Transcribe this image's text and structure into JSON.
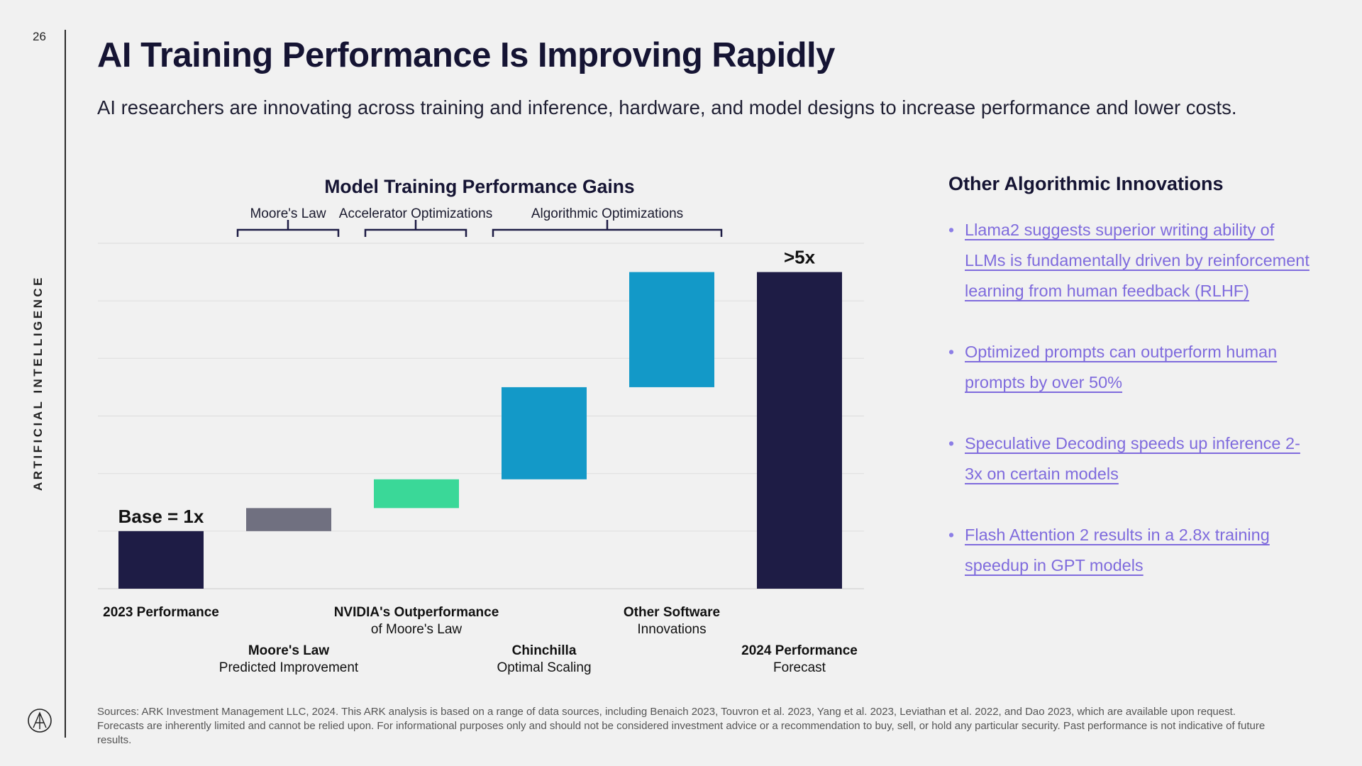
{
  "page": {
    "number": "26",
    "side_label": "ARTIFICIAL INTELLIGENCE",
    "title": "AI Training Performance Is Improving Rapidly",
    "subtitle": "AI researchers are innovating across training and inference, hardware, and model designs to increase performance and lower costs.",
    "sources": "Sources: ARK Investment Management LLC, 2024. This ARK analysis is based on a range of data sources, including Benaich 2023, Touvron et al. 2023, Yang et al. 2023, Leviathan et al. 2022, and Dao 2023, which are available upon request. Forecasts are inherently limited and cannot be relied upon. For informational purposes only and should not be considered investment advice or a recommendation to buy, sell, or hold any particular security. Past performance is not indicative of future results."
  },
  "right_panel": {
    "title": "Other Algorithmic Innovations",
    "bullets": [
      "Llama2 suggests superior writing ability of LLMs is fundamentally driven by reinforcement learning from human feedback (RLHF)",
      "Optimized prompts can outperform human prompts by over 50%",
      "Speculative Decoding speeds up inference 2-3x on certain models",
      "Flash Attention 2 results in a 2.8x training speedup in GPT models"
    ]
  },
  "chart_data": {
    "type": "bar",
    "subtype": "waterfall",
    "title": "Model Training Performance Gains",
    "ylim": [
      0,
      6
    ],
    "grid": true,
    "categories": [
      {
        "line1": "2023 Performance",
        "line2": ""
      },
      {
        "line1": "Moore's Law",
        "line2": "Predicted Improvement"
      },
      {
        "line1": "NVIDIA's Outperformance",
        "line2": "of Moore's Law"
      },
      {
        "line1": "Chinchilla",
        "line2": "Optimal Scaling"
      },
      {
        "line1": "Other Software",
        "line2": "Innovations"
      },
      {
        "line1": "2024 Performance",
        "line2": "Forecast"
      }
    ],
    "bars": [
      {
        "start": 0,
        "end": 1.0,
        "kind": "total",
        "color": "#1e1c45"
      },
      {
        "start": 1.0,
        "end": 1.4,
        "kind": "increment",
        "color": "#707080"
      },
      {
        "start": 1.4,
        "end": 1.9,
        "kind": "increment",
        "color": "#3ad898"
      },
      {
        "start": 1.9,
        "end": 3.5,
        "kind": "increment",
        "color": "#1399c8"
      },
      {
        "start": 3.5,
        "end": 5.5,
        "kind": "increment",
        "color": "#1399c8"
      },
      {
        "start": 0,
        "end": 5.5,
        "kind": "total",
        "color": "#1e1c45"
      }
    ],
    "data_labels": [
      {
        "bar": 0,
        "text": "Base = 1x"
      },
      {
        "bar": 5,
        "text": ">5x"
      }
    ],
    "groups": [
      {
        "label": "Moore's Law",
        "from_bar": 1,
        "to_bar": 1
      },
      {
        "label": "Accelerator Optimizations",
        "from_bar": 2,
        "to_bar": 2
      },
      {
        "label": "Algorithmic Optimizations",
        "from_bar": 3,
        "to_bar": 4
      }
    ]
  }
}
